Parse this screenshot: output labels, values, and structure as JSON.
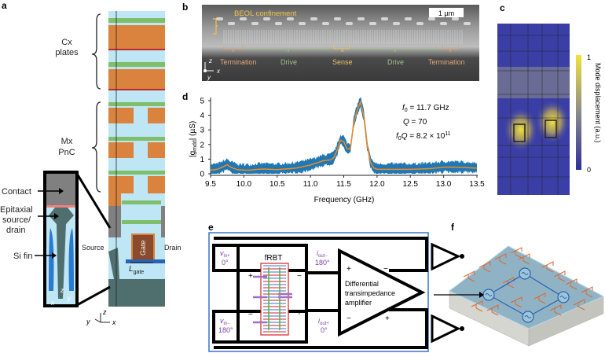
{
  "panels": {
    "a": {
      "label": "a",
      "cx_plates": [
        "Cx",
        "plates"
      ],
      "mx_pnc": [
        "Mx",
        "PnC"
      ],
      "contact": "Contact",
      "epitaxial": [
        "Epitaxial",
        "source/",
        "drain"
      ],
      "si_fin": "Si fin",
      "source": "Source",
      "drain": "Drain",
      "gate": "Gate",
      "lgate_main": "L",
      "lgate_sub": "gate",
      "axes": {
        "z": "z",
        "x": "x",
        "y": "y"
      },
      "colors": {
        "metal": "#d9833f",
        "dielectric": "#bfe6f5",
        "barrier": "#7fbf6a",
        "cap": "#c0282d",
        "silicon": "#4f6e6e",
        "contact": "#808080"
      }
    },
    "b": {
      "label": "b",
      "beol": "BEOL confinement",
      "scalebar": "1 µm",
      "regions": [
        "Termination",
        "Drive",
        "Sense",
        "Drive",
        "Termination"
      ],
      "axes": {
        "z": "z",
        "x": "x",
        "y": "y"
      },
      "colors": {
        "termination": "#e0a57a",
        "drive": "#9fc08a",
        "sense": "#e8c066",
        "beol": "#f2c24a"
      }
    },
    "c": {
      "label": "c",
      "colorbar_title": "Mode displacement (a.u.)",
      "colorbar_max": "1",
      "colorbar_min": "0",
      "colormap": [
        "#2b2f9e",
        "#8a8a8a",
        "#f2e23a"
      ]
    },
    "d": {
      "label": "d"
    },
    "e": {
      "label": "e",
      "vin_plus": {
        "sym": "v",
        "sub": "in+",
        "phase": "0°"
      },
      "vin_minus": {
        "sym": "v",
        "sub": "in−",
        "phase": "180°"
      },
      "iout_minus": {
        "sym": "i",
        "sub": "out−",
        "phase": "180°"
      },
      "iout_plus": {
        "sym": "i",
        "sub": "out+",
        "phase": "0°"
      },
      "frbt": "fRBT",
      "plus": "+",
      "minus": "−",
      "amplifier": [
        "Differential",
        "transimpedance",
        "amplifier"
      ],
      "colors": {
        "frame": "#3a73c4",
        "label": "#7b3fa0",
        "device": "#d2232a"
      }
    },
    "f": {
      "label": "f",
      "colors": {
        "chip_top": "#9fc6d6",
        "loop": "#2a63b5",
        "routing": "#e0662e"
      }
    }
  },
  "chart_data": {
    "type": "line",
    "xlabel": "Frequency (GHz)",
    "ylabel_main": "|g",
    "ylabel_sub": "mdd",
    "ylabel_tail": "| (µS)",
    "xlim": [
      9.5,
      13.5
    ],
    "ylim": [
      0,
      5.4
    ],
    "xticks": [
      "9.5",
      "10.0",
      "10.5",
      "11.0",
      "11.5",
      "12.0",
      "12.5",
      "13.0",
      "13.5"
    ],
    "yticks": [
      "0",
      "1",
      "2",
      "3",
      "4",
      "5"
    ],
    "grid": false,
    "annotations": {
      "f0": "f",
      "f0_sub": "0",
      "f0_val": " = 11.7 GHz",
      "q": "Q",
      "q_val": " = 70",
      "fq": "f",
      "fq_sub": "0",
      "fq_q": "Q",
      "fq_val": " = 8.2 × 10",
      "fq_exp": "11"
    },
    "series": [
      {
        "style": "raw-noisy",
        "color": "#1f77b4",
        "noise_halfwidth": 0.45,
        "x": [
          9.5,
          9.6,
          9.7,
          9.75,
          9.8,
          9.9,
          10.0,
          10.1,
          10.2,
          10.3,
          10.4,
          10.5,
          10.6,
          10.7,
          10.8,
          10.9,
          11.0,
          11.1,
          11.2,
          11.3,
          11.35,
          11.4,
          11.45,
          11.5,
          11.55,
          11.6,
          11.65,
          11.7,
          11.75,
          11.8,
          11.85,
          11.9,
          11.95,
          12.0,
          12.2,
          12.5,
          12.8,
          13.0,
          13.2,
          13.5
        ],
        "y": [
          0.25,
          0.3,
          0.5,
          0.62,
          0.45,
          0.28,
          0.25,
          0.25,
          0.3,
          0.32,
          0.3,
          0.28,
          0.32,
          0.35,
          0.4,
          0.5,
          0.6,
          0.75,
          0.9,
          0.95,
          1.1,
          1.6,
          2.3,
          2.2,
          1.7,
          1.7,
          3.5,
          4.3,
          4.9,
          4.0,
          2.0,
          0.8,
          0.4,
          0.3,
          0.3,
          0.3,
          0.35,
          0.45,
          0.45,
          0.38
        ]
      },
      {
        "style": "smoothed",
        "color": "#f28a1e",
        "x": [
          9.5,
          9.6,
          9.7,
          9.75,
          9.8,
          9.9,
          10.0,
          10.1,
          10.2,
          10.3,
          10.4,
          10.5,
          10.6,
          10.7,
          10.8,
          10.9,
          11.0,
          11.1,
          11.2,
          11.3,
          11.35,
          11.4,
          11.45,
          11.5,
          11.55,
          11.6,
          11.65,
          11.7,
          11.75,
          11.8,
          11.85,
          11.9,
          11.95,
          12.0,
          12.2,
          12.5,
          12.8,
          13.0,
          13.2,
          13.5
        ],
        "y": [
          0.25,
          0.3,
          0.5,
          0.62,
          0.45,
          0.28,
          0.25,
          0.25,
          0.3,
          0.32,
          0.3,
          0.28,
          0.32,
          0.35,
          0.4,
          0.5,
          0.6,
          0.75,
          0.9,
          0.95,
          1.1,
          1.6,
          2.3,
          2.2,
          1.7,
          1.7,
          3.5,
          4.3,
          4.9,
          4.0,
          2.0,
          0.8,
          0.4,
          0.3,
          0.3,
          0.3,
          0.35,
          0.45,
          0.45,
          0.38
        ]
      }
    ]
  }
}
